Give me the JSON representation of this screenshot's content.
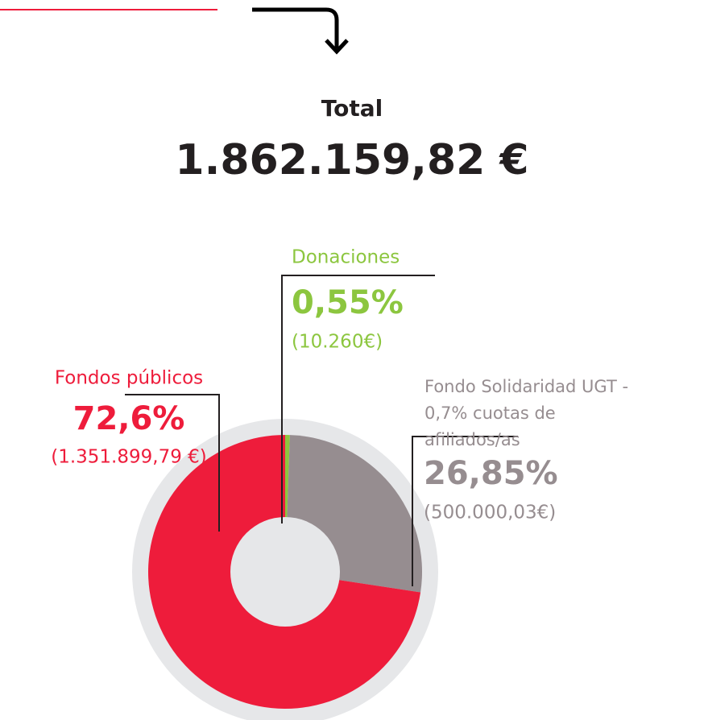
{
  "chart_data": {
    "type": "pie",
    "donut": true,
    "title": "Total",
    "subtitle": "1.862.159,82 €",
    "categories": [
      "Donaciones",
      "Fondo Solidaridad UGT - 0,7% cuotas de afiliados/as",
      "Fondos públicos"
    ],
    "values": [
      0.55,
      26.85,
      72.6
    ],
    "value_labels": [
      "0,55%",
      "26,85%",
      "72,6%"
    ],
    "amount_labels": [
      "(10.260€)",
      "(500.000,03€)",
      "(1.351.899,79 €)"
    ],
    "colors": [
      "#8cc63f",
      "#968d90",
      "#ee1c3b"
    ]
  }
}
